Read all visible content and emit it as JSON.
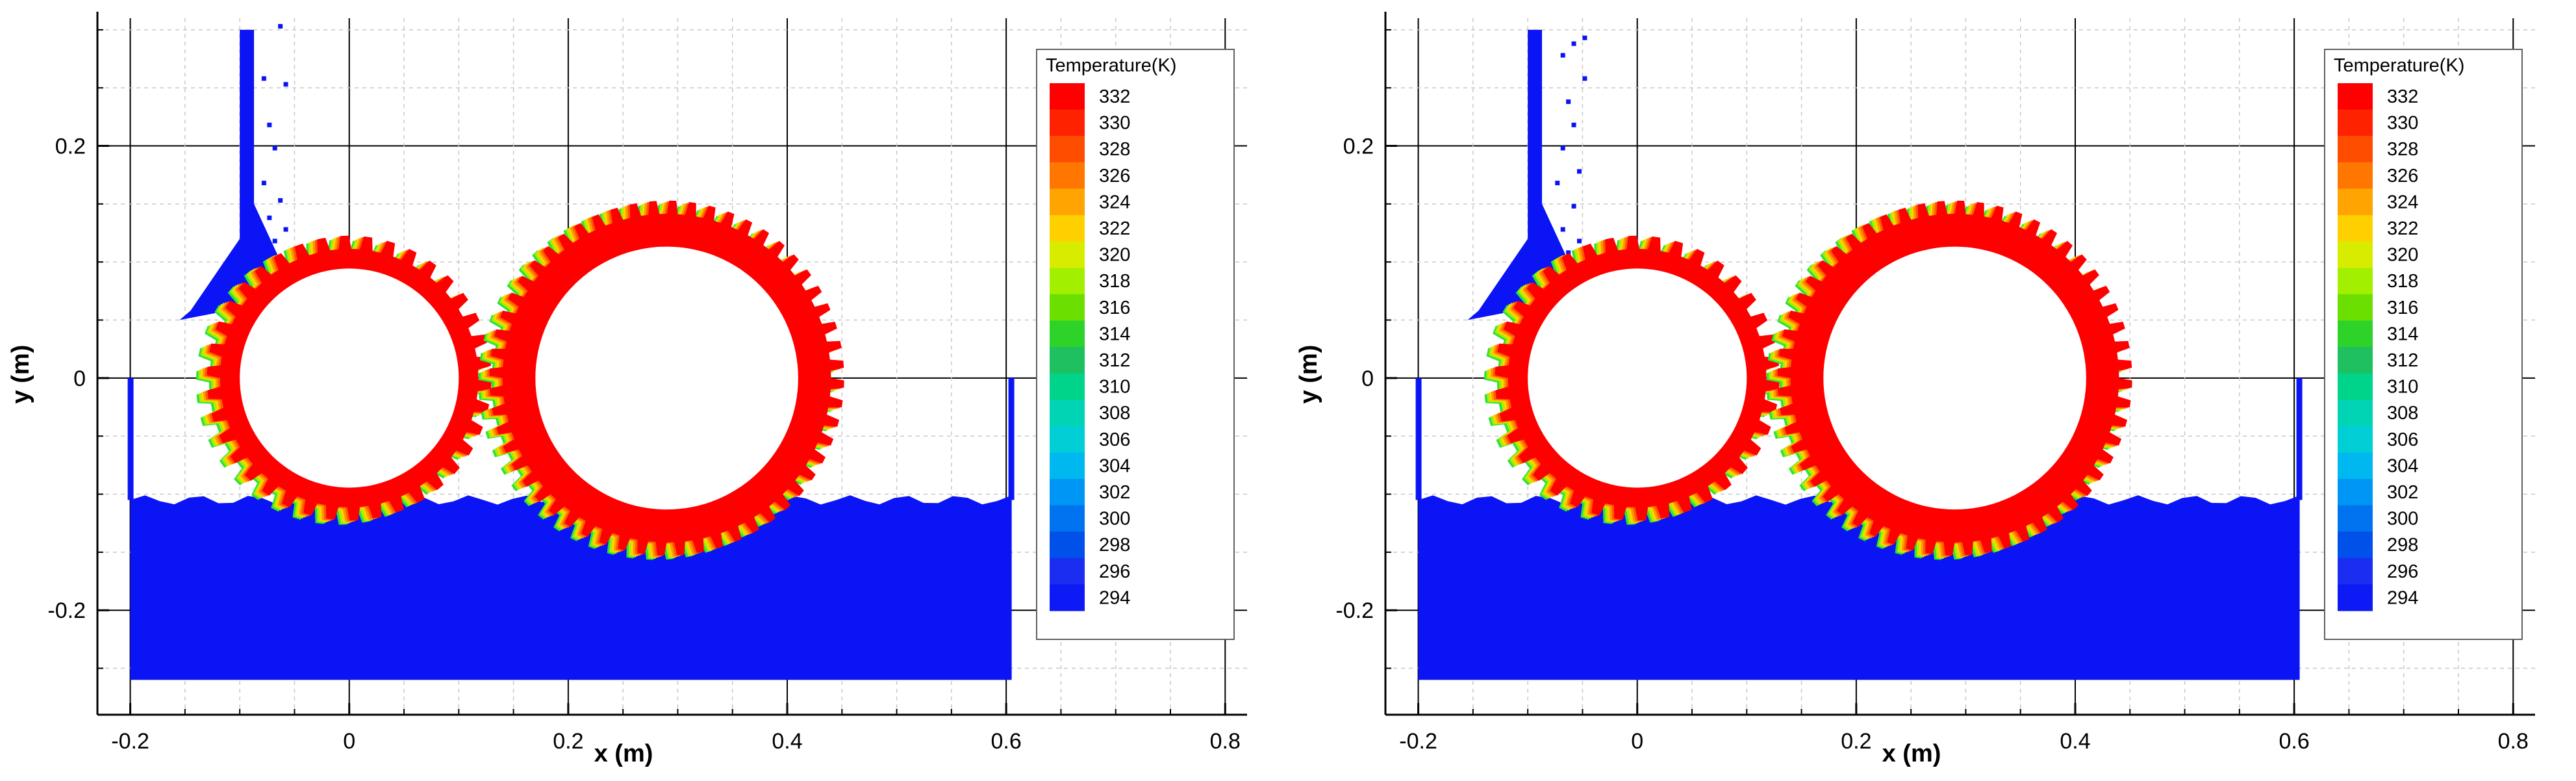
{
  "chart_data": [
    {
      "type": "contour",
      "panel": "left",
      "xlabel": "x (m)",
      "ylabel": "y (m)",
      "xlim": [
        -0.23,
        0.82
      ],
      "ylim": [
        -0.29,
        0.31
      ],
      "grid": true,
      "xticks": [
        -0.2,
        0,
        0.2,
        0.4,
        0.6,
        0.8
      ],
      "xtick_labels": [
        "-0.2",
        "0",
        "0.2",
        "0.4",
        "0.6",
        "0.8"
      ],
      "yticks": [
        -0.2,
        0,
        0.2
      ],
      "ytick_labels": [
        "-0.2",
        "0",
        "0.2"
      ],
      "legend": {
        "title": "Temperature(K)",
        "placement": "top-right",
        "levels": [
          "332",
          "330",
          "328",
          "326",
          "324",
          "322",
          "320",
          "318",
          "316",
          "314",
          "312",
          "310",
          "308",
          "306",
          "304",
          "302",
          "300",
          "298",
          "296",
          "294"
        ],
        "colors": [
          "#ff0000",
          "#ff2200",
          "#ff4d00",
          "#ff7700",
          "#ffa400",
          "#ffd000",
          "#d8ec00",
          "#a2ef00",
          "#6be000",
          "#2ed32a",
          "#1fc060",
          "#00d48a",
          "#00d4b4",
          "#00d0d6",
          "#00b8f0",
          "#0096f5",
          "#0074f0",
          "#0050ea",
          "#1a2df0",
          "#0d1af5"
        ]
      },
      "gears": [
        {
          "name": "small-gear",
          "cx": 0.0,
          "cy": 0.0,
          "bore_r": 0.1,
          "tip_r": 0.13,
          "teeth": 38
        },
        {
          "name": "large-gear",
          "cx": 0.29,
          "cy": 0.0,
          "bore_r": 0.12,
          "tip_r": 0.162,
          "teeth": 56
        }
      ],
      "oil_bath": {
        "x0": -0.2,
        "x1": 0.605,
        "bottom": -0.26,
        "surface": -0.105,
        "wall_top": 0.0
      },
      "nozzle": {
        "x_left": -0.1,
        "x_right": -0.087,
        "top": 0.3,
        "jet_y": 0.1,
        "jet_end_x": -0.155,
        "jet_end_y": 0.05
      }
    },
    {
      "type": "contour",
      "panel": "right",
      "xlabel": "x (m)",
      "ylabel": "y (m)",
      "xlim": [
        -0.23,
        0.82
      ],
      "ylim": [
        -0.29,
        0.31
      ],
      "grid": true,
      "xticks": [
        -0.2,
        0,
        0.2,
        0.4,
        0.6,
        0.8
      ],
      "xtick_labels": [
        "-0.2",
        "0",
        "0.2",
        "0.4",
        "0.6",
        "0.8"
      ],
      "yticks": [
        -0.2,
        0,
        0.2
      ],
      "ytick_labels": [
        "-0.2",
        "0",
        "0.2"
      ],
      "legend": {
        "title": "Temperature(K)",
        "placement": "top-right",
        "levels": [
          "332",
          "330",
          "328",
          "326",
          "324",
          "322",
          "320",
          "318",
          "316",
          "314",
          "312",
          "310",
          "308",
          "306",
          "304",
          "302",
          "300",
          "298",
          "296",
          "294"
        ],
        "colors": [
          "#ff0000",
          "#ff2200",
          "#ff4d00",
          "#ff7700",
          "#ffa400",
          "#ffd000",
          "#d8ec00",
          "#a2ef00",
          "#6be000",
          "#2ed32a",
          "#1fc060",
          "#00d48a",
          "#00d4b4",
          "#00d0d6",
          "#00b8f0",
          "#0096f5",
          "#0074f0",
          "#0050ea",
          "#1a2df0",
          "#0d1af5"
        ]
      },
      "gears": [
        {
          "name": "small-gear",
          "cx": 0.0,
          "cy": 0.0,
          "bore_r": 0.1,
          "tip_r": 0.13,
          "teeth": 38
        },
        {
          "name": "large-gear",
          "cx": 0.29,
          "cy": 0.0,
          "bore_r": 0.12,
          "tip_r": 0.162,
          "teeth": 56
        }
      ],
      "oil_bath": {
        "x0": -0.2,
        "x1": 0.605,
        "bottom": -0.26,
        "surface": -0.105,
        "wall_top": 0.0
      },
      "nozzle": {
        "x_left": -0.1,
        "x_right": -0.087,
        "top": 0.3,
        "jet_y": 0.1,
        "jet_end_x": -0.155,
        "jet_end_y": 0.05
      }
    }
  ]
}
